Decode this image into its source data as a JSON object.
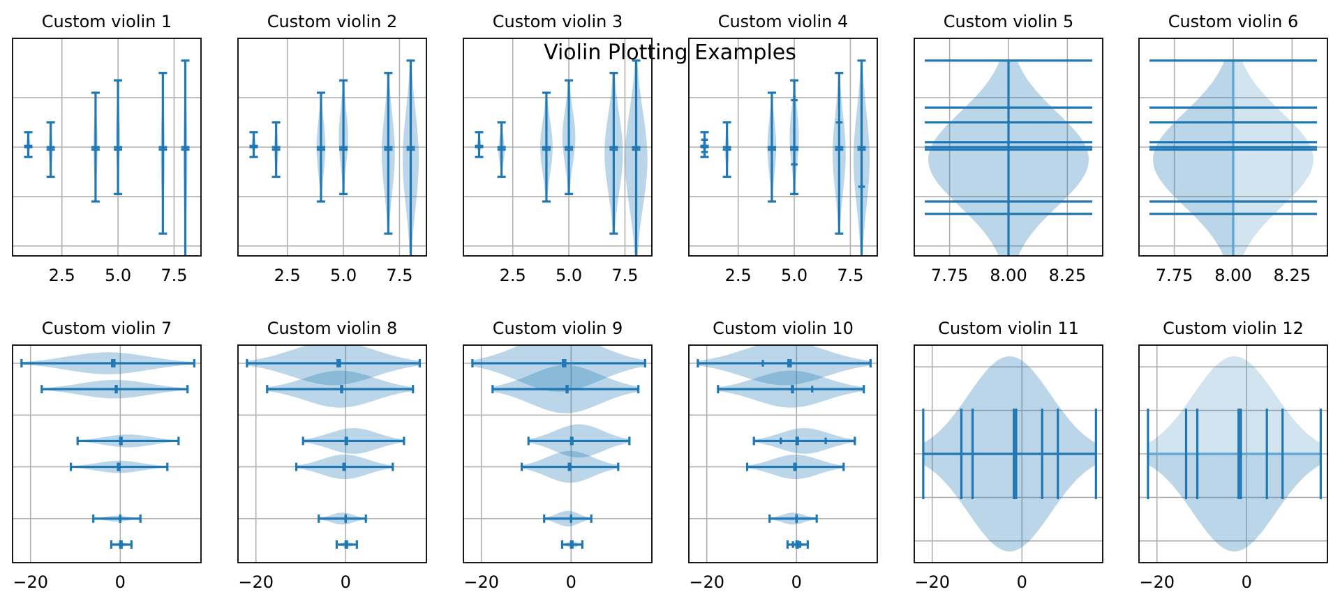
{
  "figure": {
    "title": "Violin Plotting Examples",
    "colors": {
      "fill": "#1f77b4",
      "line": "#1f77b4",
      "line_light": "#5da5d5",
      "grid": "#b0b0b0",
      "frame": "#000000"
    }
  },
  "chart_data": [
    {
      "type": "violin",
      "title": "Custom violin 1",
      "orientation": "vertical",
      "positions": [
        1,
        2,
        4,
        5,
        7,
        8
      ],
      "width_scale": 0.1,
      "xlim": [
        0.3,
        8.7
      ],
      "ylim": [
        -4.4,
        4.4
      ],
      "xticks": [
        2.5,
        5.0,
        7.5
      ],
      "xtick_labels": [
        "2.5",
        "5.0",
        "7.5"
      ],
      "yticks": [
        -4,
        -2,
        0,
        2
      ],
      "series": [
        {
          "position": 1,
          "min": -0.4,
          "max": 0.6,
          "mean": 0.0,
          "median": 0.05
        },
        {
          "position": 2,
          "min": -1.2,
          "max": 1.0,
          "mean": 0.0,
          "median": -0.1
        },
        {
          "position": 4,
          "min": -2.2,
          "max": 2.2,
          "mean": 0.0,
          "median": -0.1
        },
        {
          "position": 5,
          "min": -1.9,
          "max": 2.7,
          "mean": 0.0,
          "median": -0.1
        },
        {
          "position": 7,
          "min": -3.5,
          "max": 3.0,
          "mean": -0.1,
          "median": 0.0
        },
        {
          "position": 8,
          "min": -4.5,
          "max": 3.5,
          "mean": -0.1,
          "median": 0.0
        }
      ]
    },
    {
      "type": "violin",
      "title": "Custom violin 2",
      "orientation": "vertical",
      "positions": [
        1,
        2,
        4,
        5,
        7,
        8
      ],
      "width_scale": 0.5,
      "xlim": [
        0.3,
        8.7
      ],
      "ylim": [
        -4.4,
        4.4
      ],
      "xticks": [
        2.5,
        5.0,
        7.5
      ],
      "xtick_labels": [
        "2.5",
        "5.0",
        "7.5"
      ],
      "yticks": [
        -4,
        -2,
        0,
        2
      ],
      "series": [
        {
          "position": 1,
          "min": -0.4,
          "max": 0.6,
          "mean": 0.0,
          "median": 0.05
        },
        {
          "position": 2,
          "min": -1.2,
          "max": 1.0,
          "mean": 0.0,
          "median": -0.1
        },
        {
          "position": 4,
          "min": -2.2,
          "max": 2.2,
          "mean": 0.0,
          "median": -0.1
        },
        {
          "position": 5,
          "min": -1.9,
          "max": 2.7,
          "mean": 0.0,
          "median": -0.1
        },
        {
          "position": 7,
          "min": -3.5,
          "max": 3.0,
          "mean": -0.1,
          "median": 0.0
        },
        {
          "position": 8,
          "min": -4.5,
          "max": 3.5,
          "mean": -0.1,
          "median": 0.0
        }
      ]
    },
    {
      "type": "violin",
      "title": "Custom violin 3",
      "orientation": "vertical",
      "positions": [
        1,
        2,
        4,
        5,
        7,
        8
      ],
      "width_scale": 0.7,
      "xlim": [
        0.3,
        8.7
      ],
      "ylim": [
        -4.4,
        4.4
      ],
      "xticks": [
        2.5,
        5.0,
        7.5
      ],
      "xtick_labels": [
        "2.5",
        "5.0",
        "7.5"
      ],
      "yticks": [
        -4,
        -2,
        0,
        2
      ],
      "series": [
        {
          "position": 1,
          "min": -0.4,
          "max": 0.6,
          "mean": 0.0,
          "median": 0.05
        },
        {
          "position": 2,
          "min": -1.2,
          "max": 1.0,
          "mean": 0.0,
          "median": -0.1
        },
        {
          "position": 4,
          "min": -2.2,
          "max": 2.2,
          "mean": 0.0,
          "median": -0.1
        },
        {
          "position": 5,
          "min": -1.9,
          "max": 2.7,
          "mean": 0.0,
          "median": -0.1
        },
        {
          "position": 7,
          "min": -3.5,
          "max": 3.0,
          "mean": -0.1,
          "median": 0.0
        },
        {
          "position": 8,
          "min": -4.5,
          "max": 3.5,
          "mean": -0.1,
          "median": 0.0
        }
      ]
    },
    {
      "type": "violin",
      "title": "Custom violin 4",
      "orientation": "vertical",
      "positions": [
        1,
        2,
        4,
        5,
        7,
        8
      ],
      "width_scale": 0.5,
      "quantiles": true,
      "xlim": [
        0.3,
        8.7
      ],
      "ylim": [
        -4.4,
        4.4
      ],
      "xticks": [
        2.5,
        5.0,
        7.5
      ],
      "xtick_labels": [
        "2.5",
        "5.0",
        "7.5"
      ],
      "yticks": [
        -4,
        -2,
        0,
        2
      ],
      "series": [
        {
          "position": 1,
          "min": -0.4,
          "max": 0.6,
          "mean": 0.0,
          "median": 0.05,
          "quantiles": [
            -0.2,
            0.3
          ]
        },
        {
          "position": 2,
          "min": -1.2,
          "max": 1.0,
          "mean": 0.0,
          "median": -0.1,
          "quantiles": []
        },
        {
          "position": 4,
          "min": -2.2,
          "max": 2.2,
          "mean": 0.0,
          "median": -0.1,
          "quantiles": []
        },
        {
          "position": 5,
          "min": -1.9,
          "max": 2.7,
          "mean": 0.0,
          "median": -0.1,
          "quantiles": [
            -0.7,
            1.9
          ]
        },
        {
          "position": 7,
          "min": -3.5,
          "max": 3.0,
          "mean": -0.1,
          "median": 0.0,
          "quantiles": [
            1.0
          ]
        },
        {
          "position": 8,
          "min": -4.5,
          "max": 3.5,
          "mean": -0.1,
          "median": 0.0,
          "quantiles": [
            -1.6
          ]
        }
      ]
    },
    {
      "type": "violin",
      "title": "Custom violin 5",
      "orientation": "vertical",
      "positions": [
        8
      ],
      "xlim": [
        7.6,
        8.4
      ],
      "ylim": [
        -4.4,
        4.4
      ],
      "xticks": [
        7.75,
        8.0,
        8.25
      ],
      "xtick_labels": [
        "7.75",
        "8.00",
        "8.25"
      ],
      "yticks": [
        -4,
        -2,
        0,
        2
      ],
      "series": [
        {
          "position": 8,
          "min": -4.5,
          "max": 3.5,
          "mean": -0.1,
          "median": 0.0,
          "lines": [
            -2.7,
            -2.2,
            0.2,
            0.0,
            -0.1,
            1.0,
            1.6
          ]
        }
      ]
    },
    {
      "type": "violin",
      "title": "Custom violin 6",
      "orientation": "vertical",
      "side": "split",
      "positions": [
        8
      ],
      "xlim": [
        7.6,
        8.4
      ],
      "ylim": [
        -4.4,
        4.4
      ],
      "xticks": [
        7.75,
        8.0,
        8.25
      ],
      "xtick_labels": [
        "7.75",
        "8.00",
        "8.25"
      ],
      "yticks": [
        -4,
        -2,
        0,
        2
      ],
      "series": [
        {
          "position": 8,
          "min": -4.5,
          "max": 3.5,
          "mean": -0.1,
          "median": 0.0,
          "lines": [
            -2.7,
            -2.2,
            0.2,
            0.0,
            -0.1,
            1.0,
            1.6
          ]
        }
      ]
    },
    {
      "type": "violin",
      "title": "Custom violin 7",
      "orientation": "horizontal",
      "positions": [
        1,
        2,
        4,
        5,
        7,
        8
      ],
      "width_scale": 0.5,
      "xlim": [
        -24,
        18
      ],
      "ylim": [
        0.3,
        8.7
      ],
      "xticks": [
        -20,
        0
      ],
      "xtick_labels": [
        "−20",
        "0"
      ],
      "yticks": [
        2,
        4,
        6,
        8
      ],
      "series": [
        {
          "position": 1,
          "min": -2.0,
          "max": 2.5,
          "mean": 0.3,
          "median": 0.0
        },
        {
          "position": 2,
          "min": -6.0,
          "max": 4.5,
          "mean": 0.0,
          "median": 0.0
        },
        {
          "position": 4,
          "min": -11.0,
          "max": 10.5,
          "mean": -0.2,
          "median": -0.5
        },
        {
          "position": 5,
          "min": -9.5,
          "max": 13.0,
          "mean": 0.3,
          "median": 0.0
        },
        {
          "position": 7,
          "min": -17.5,
          "max": 15.0,
          "mean": -1.0,
          "median": -0.8
        },
        {
          "position": 8,
          "min": -22.0,
          "max": 16.5,
          "mean": -1.3,
          "median": -1.8
        }
      ]
    },
    {
      "type": "violin",
      "title": "Custom violin 8",
      "orientation": "horizontal",
      "positions": [
        1,
        2,
        4,
        5,
        7,
        8
      ],
      "width_scale": 1.0,
      "xlim": [
        -24,
        18
      ],
      "ylim": [
        0.3,
        8.7
      ],
      "xticks": [
        -20,
        0
      ],
      "xtick_labels": [
        "−20",
        "0"
      ],
      "yticks": [
        2,
        4,
        6,
        8
      ],
      "series": [
        {
          "position": 1,
          "min": -2.0,
          "max": 2.5,
          "mean": 0.3,
          "median": 0.0
        },
        {
          "position": 2,
          "min": -6.0,
          "max": 4.5,
          "mean": 0.0,
          "median": 0.0
        },
        {
          "position": 4,
          "min": -11.0,
          "max": 10.5,
          "mean": -0.2,
          "median": -0.5
        },
        {
          "position": 5,
          "min": -9.5,
          "max": 13.0,
          "mean": 0.3,
          "median": 0.0
        },
        {
          "position": 7,
          "min": -17.5,
          "max": 15.0,
          "mean": -1.0,
          "median": -0.8
        },
        {
          "position": 8,
          "min": -22.0,
          "max": 16.5,
          "mean": -1.3,
          "median": -1.8
        }
      ]
    },
    {
      "type": "violin",
      "title": "Custom violin 9",
      "orientation": "horizontal",
      "positions": [
        1,
        2,
        4,
        5,
        7,
        8
      ],
      "width_scale": 1.3,
      "xlim": [
        -24,
        18
      ],
      "ylim": [
        0.3,
        8.7
      ],
      "xticks": [
        -20,
        0
      ],
      "xtick_labels": [
        "−20",
        "0"
      ],
      "yticks": [
        2,
        4,
        6,
        8
      ],
      "series": [
        {
          "position": 1,
          "min": -2.0,
          "max": 2.5,
          "mean": 0.3,
          "median": 0.0
        },
        {
          "position": 2,
          "min": -6.0,
          "max": 4.5,
          "mean": 0.0,
          "median": 0.0
        },
        {
          "position": 4,
          "min": -11.0,
          "max": 10.5,
          "mean": -0.2,
          "median": -0.5
        },
        {
          "position": 5,
          "min": -9.5,
          "max": 13.0,
          "mean": 0.3,
          "median": 0.0
        },
        {
          "position": 7,
          "min": -17.5,
          "max": 15.0,
          "mean": -1.0,
          "median": -0.8
        },
        {
          "position": 8,
          "min": -22.0,
          "max": 16.5,
          "mean": -1.3,
          "median": -1.8
        }
      ]
    },
    {
      "type": "violin",
      "title": "Custom violin 10",
      "orientation": "horizontal",
      "positions": [
        1,
        2,
        4,
        5,
        7,
        8
      ],
      "width_scale": 1.0,
      "quantiles": true,
      "xlim": [
        -24,
        18
      ],
      "ylim": [
        0.3,
        8.7
      ],
      "xticks": [
        -20,
        0
      ],
      "xtick_labels": [
        "−20",
        "0"
      ],
      "yticks": [
        2,
        4,
        6,
        8
      ],
      "series": [
        {
          "position": 1,
          "min": -2.0,
          "max": 2.5,
          "mean": 0.3,
          "median": 0.0,
          "quantiles": [
            -0.8,
            0.8
          ]
        },
        {
          "position": 2,
          "min": -6.0,
          "max": 4.5,
          "mean": 0.0,
          "median": 0.0,
          "quantiles": []
        },
        {
          "position": 4,
          "min": -11.0,
          "max": 10.5,
          "mean": -0.2,
          "median": -0.5,
          "quantiles": []
        },
        {
          "position": 5,
          "min": -9.5,
          "max": 13.0,
          "mean": 0.3,
          "median": 0.0,
          "quantiles": [
            -3.5,
            6.5
          ]
        },
        {
          "position": 7,
          "min": -17.5,
          "max": 15.0,
          "mean": -1.0,
          "median": -0.8,
          "quantiles": [
            3.5
          ]
        },
        {
          "position": 8,
          "min": -22.0,
          "max": 16.5,
          "mean": -1.3,
          "median": -1.8,
          "quantiles": [
            -7.5
          ]
        }
      ]
    },
    {
      "type": "violin",
      "title": "Custom violin 11",
      "orientation": "horizontal",
      "positions": [
        8
      ],
      "xlim": [
        -24,
        18
      ],
      "ylim": [
        7.5,
        8.5
      ],
      "xticks": [
        -20,
        0
      ],
      "xtick_labels": [
        "−20",
        "0"
      ],
      "yticks": [
        7.6,
        7.8,
        8.0,
        8.2,
        8.4
      ],
      "series": [
        {
          "position": 8,
          "min": -22.0,
          "max": 16.5,
          "mean": -1.3,
          "median": -1.8,
          "lines": [
            -13.5,
            -11.0,
            -1.8,
            -1.3,
            4.5,
            8.0
          ]
        }
      ]
    },
    {
      "type": "violin",
      "title": "Custom violin 12",
      "orientation": "horizontal",
      "side": "split",
      "positions": [
        8
      ],
      "xlim": [
        -24,
        18
      ],
      "ylim": [
        7.5,
        8.5
      ],
      "xticks": [
        -20,
        0
      ],
      "xtick_labels": [
        "−20",
        "0"
      ],
      "yticks": [
        7.6,
        7.8,
        8.0,
        8.2,
        8.4
      ],
      "series": [
        {
          "position": 8,
          "min": -22.0,
          "max": 16.5,
          "mean": -1.3,
          "median": -1.8,
          "lines": [
            -13.5,
            -11.0,
            -1.8,
            -1.3,
            4.5,
            8.0
          ]
        }
      ]
    }
  ]
}
